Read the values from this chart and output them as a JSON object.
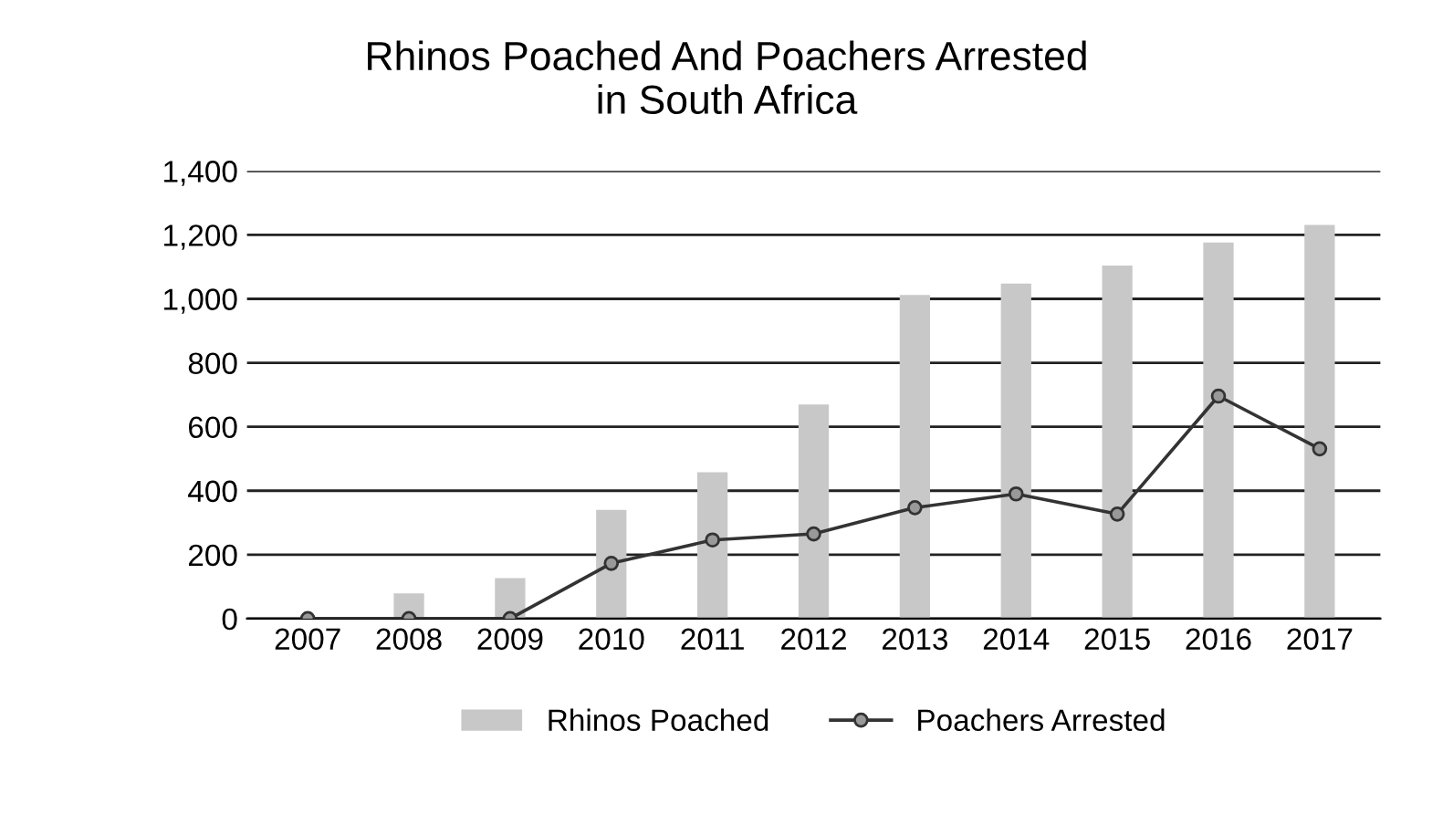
{
  "chart_data": {
    "type": "bar",
    "title": "Rhinos Poached And Poachers Arrested\nin South Africa",
    "categories": [
      "2007",
      "2008",
      "2009",
      "2010",
      "2011",
      "2012",
      "2013",
      "2014",
      "2015",
      "2016",
      "2017"
    ],
    "series": [
      {
        "name": "Rhinos Poached",
        "color": "#c8c8c8",
        "values": [
          null,
          79,
          127,
          340,
          458,
          670,
          1012,
          1048,
          1104,
          1176,
          1231
        ]
      },
      {
        "name": "Poachers Arrested",
        "type": "line",
        "color": "#333333",
        "marker": "circle",
        "values": [
          0,
          0,
          0,
          173,
          246,
          265,
          347,
          390,
          327,
          696,
          531
        ]
      }
    ],
    "ylim": [
      0,
      1400
    ],
    "yticks": [
      {
        "value": 0,
        "label": "0"
      },
      {
        "value": 200,
        "label": "200"
      },
      {
        "value": 400,
        "label": "400"
      },
      {
        "value": 600,
        "label": "600"
      },
      {
        "value": 800,
        "label": "800"
      },
      {
        "value": 1000,
        "label": "1,000"
      },
      {
        "value": 1200,
        "label": "1,200"
      },
      {
        "value": 1400,
        "label": "1,400"
      }
    ],
    "grid": "y",
    "legend": "bottom"
  }
}
